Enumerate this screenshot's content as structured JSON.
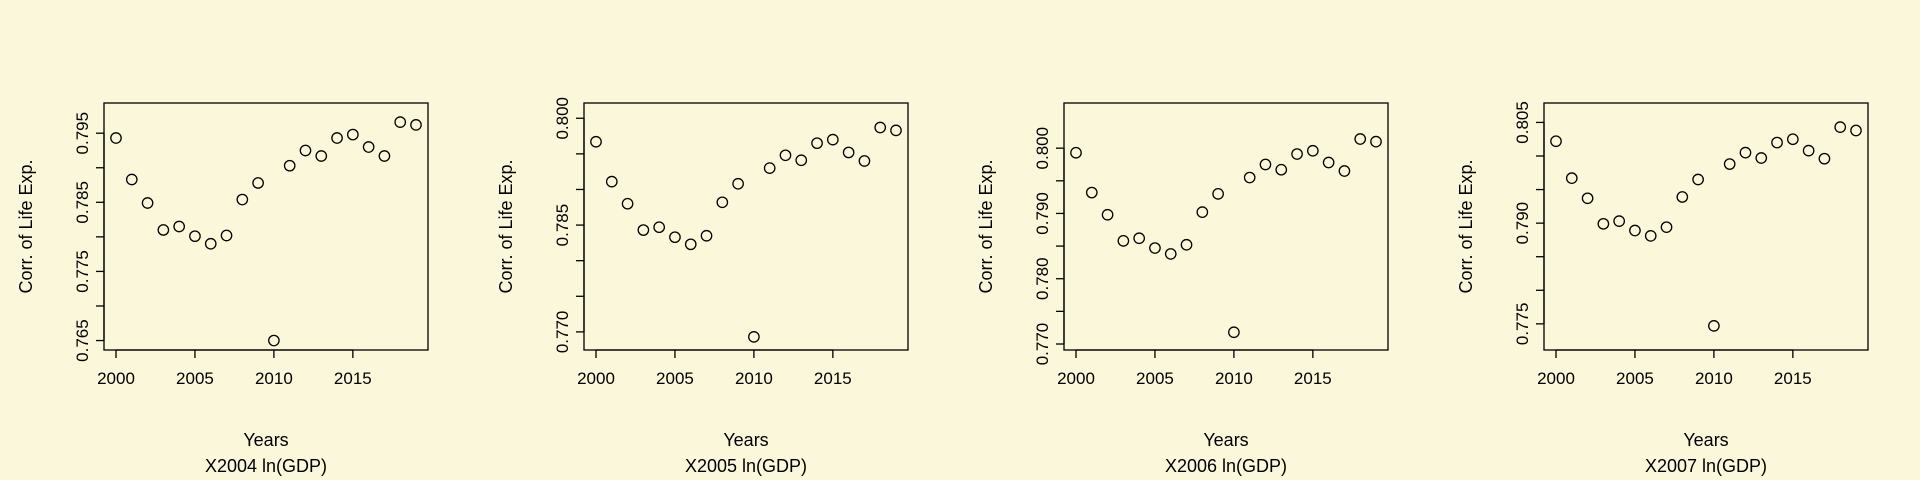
{
  "chart_data": [
    {
      "type": "scatter",
      "ylabel": "Corr. of Life Exp.",
      "xlabel": "Years",
      "subtitle": "X2004 ln(GDP)",
      "xlim": [
        2000,
        2019
      ],
      "ylim": [
        0.7645,
        0.7985
      ],
      "xticks": [
        2000,
        2005,
        2010,
        2015
      ],
      "yticks": [
        0.765,
        0.77,
        0.775,
        0.78,
        0.785,
        0.79,
        0.795
      ],
      "yticklabels": [
        "0.765",
        "",
        "0.775",
        "",
        "0.785",
        "",
        "0.795"
      ],
      "x": [
        2000,
        2001,
        2002,
        2003,
        2004,
        2005,
        2006,
        2007,
        2008,
        2009,
        2010,
        2011,
        2012,
        2013,
        2014,
        2015,
        2016,
        2017,
        2018,
        2019
      ],
      "y": [
        0.7943,
        0.7883,
        0.7849,
        0.781,
        0.7815,
        0.7801,
        0.779,
        0.7802,
        0.7854,
        0.7878,
        0.765,
        0.7903,
        0.7925,
        0.7917,
        0.7943,
        0.7948,
        0.793,
        0.7917,
        0.7966,
        0.7962
      ]
    },
    {
      "type": "scatter",
      "ylabel": "Corr. of Life Exp.",
      "xlabel": "Years",
      "subtitle": "X2005 ln(GDP)",
      "xlim": [
        2000,
        2019
      ],
      "ylim": [
        0.7683,
        0.8013
      ],
      "xticks": [
        2000,
        2005,
        2010,
        2015
      ],
      "yticks": [
        0.77,
        0.775,
        0.78,
        0.785,
        0.79,
        0.795,
        0.8
      ],
      "yticklabels": [
        "0.770",
        "",
        "",
        "0.785",
        "",
        "",
        "0.800"
      ],
      "x": [
        2000,
        2001,
        2002,
        2003,
        2004,
        2005,
        2006,
        2007,
        2008,
        2009,
        2010,
        2011,
        2012,
        2013,
        2014,
        2015,
        2016,
        2017,
        2018,
        2019
      ],
      "y": [
        0.7967,
        0.7911,
        0.788,
        0.7843,
        0.7847,
        0.7833,
        0.7823,
        0.7835,
        0.7882,
        0.7908,
        0.7693,
        0.793,
        0.7948,
        0.7941,
        0.7965,
        0.797,
        0.7952,
        0.794,
        0.7987,
        0.7983
      ]
    },
    {
      "type": "scatter",
      "ylabel": "Corr. of Life Exp.",
      "xlabel": "Years",
      "subtitle": "X2006 ln(GDP)",
      "xlim": [
        2000,
        2019
      ],
      "ylim": [
        0.77,
        0.806
      ],
      "xticks": [
        2000,
        2005,
        2010,
        2015
      ],
      "yticks": [
        0.77,
        0.775,
        0.78,
        0.785,
        0.79,
        0.795,
        0.8
      ],
      "yticklabels": [
        "0.770",
        "",
        "0.780",
        "",
        "0.790",
        "",
        "0.800"
      ],
      "x": [
        2000,
        2001,
        2002,
        2003,
        2004,
        2005,
        2006,
        2007,
        2008,
        2009,
        2010,
        2011,
        2012,
        2013,
        2014,
        2015,
        2016,
        2017,
        2018,
        2019
      ],
      "y": [
        0.7993,
        0.7932,
        0.7898,
        0.7858,
        0.7862,
        0.7847,
        0.7838,
        0.7852,
        0.7902,
        0.793,
        0.7718,
        0.7955,
        0.7975,
        0.7967,
        0.7991,
        0.7996,
        0.7978,
        0.7965,
        0.8014,
        0.801
      ]
    },
    {
      "type": "scatter",
      "ylabel": "Corr. of Life Exp.",
      "xlabel": "Years",
      "subtitle": "X2007 ln(GDP)",
      "xlim": [
        2000,
        2019
      ],
      "ylim": [
        0.772,
        0.807
      ],
      "xticks": [
        2000,
        2005,
        2010,
        2015
      ],
      "yticks": [
        0.775,
        0.78,
        0.785,
        0.79,
        0.795,
        0.8,
        0.805
      ],
      "yticklabels": [
        "0.775",
        "",
        "",
        "0.790",
        "",
        "",
        "0.805"
      ],
      "x": [
        2000,
        2001,
        2002,
        2003,
        2004,
        2005,
        2006,
        2007,
        2008,
        2009,
        2010,
        2011,
        2012,
        2013,
        2014,
        2015,
        2016,
        2017,
        2018,
        2019
      ],
      "y": [
        0.8022,
        0.7967,
        0.7937,
        0.7899,
        0.7903,
        0.7889,
        0.7881,
        0.7894,
        0.7939,
        0.7965,
        0.7747,
        0.7988,
        0.8005,
        0.7997,
        0.802,
        0.8025,
        0.8008,
        0.7996,
        0.8043,
        0.8038
      ]
    }
  ]
}
